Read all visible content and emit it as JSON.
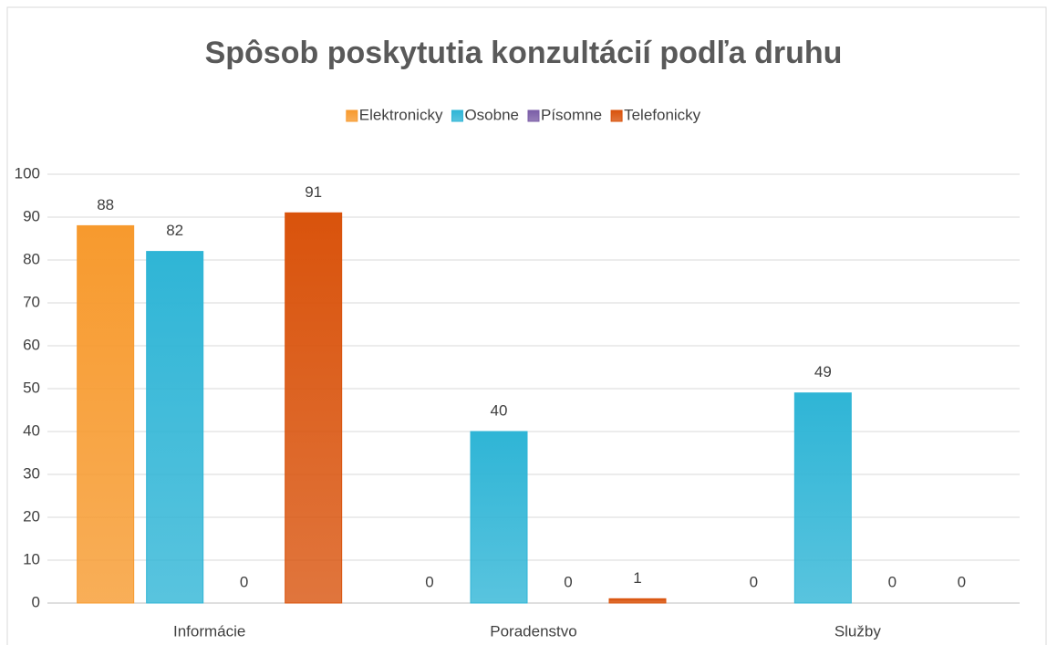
{
  "chart_data": {
    "type": "bar",
    "title": "Spôsob poskytutia konzultácií podľa druhu",
    "categories": [
      "Informácie",
      "Poradenstvo",
      "Služby"
    ],
    "series": [
      {
        "name": "Elektronicky",
        "color": "#f79a2e",
        "values": [
          88,
          0,
          0
        ]
      },
      {
        "name": "Osobne",
        "color": "#2fb5d6",
        "values": [
          82,
          40,
          49
        ]
      },
      {
        "name": "Písomne",
        "color": "#7b5ea7",
        "values": [
          0,
          0,
          0
        ]
      },
      {
        "name": "Telefonicky",
        "color": "#d9530c",
        "values": [
          91,
          1,
          0
        ]
      }
    ],
    "ylim": [
      0,
      100
    ],
    "yticks": [
      0,
      10,
      20,
      30,
      40,
      50,
      60,
      70,
      80,
      90,
      100
    ],
    "grid": true,
    "legend": "top"
  }
}
